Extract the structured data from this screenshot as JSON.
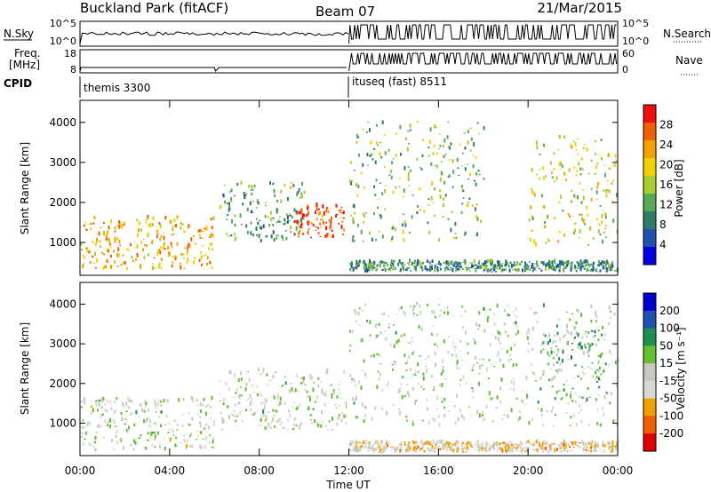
{
  "header": {
    "station": "Buckland Park (fitACF)",
    "beam": "Beam 07",
    "date": "21/Mar/2015"
  },
  "top_panels": {
    "nsky_label": "N.Sky",
    "nsky_ticks": [
      "10^5",
      "10^0"
    ],
    "nsearch_label": "N.Search",
    "nsearch_ticks": [
      "10^5",
      "10^0"
    ],
    "freq_label_1": "Freq.",
    "freq_label_2": "[MHz]",
    "freq_ticks": [
      "18",
      "8"
    ],
    "nave_label": "Nave",
    "nave_ticks": [
      "60",
      "0"
    ],
    "cpid_label": "CPID",
    "cpid_segments": [
      {
        "name": "themis 3300",
        "start_h": 0,
        "end_h": 12
      },
      {
        "name": "ituseq (fast) 8511",
        "start_h": 12,
        "end_h": 24
      }
    ]
  },
  "colors": {
    "power": [
      "#0000e0",
      "#2050b0",
      "#2e7d6a",
      "#58a858",
      "#a8cc30",
      "#f0d000",
      "#f4a000",
      "#f06000",
      "#f01010"
    ],
    "velocity": [
      "#e00000",
      "#f06000",
      "#f0a000",
      "#d8d8d0",
      "#c8c8c0",
      "#60c030",
      "#209050",
      "#2050b0",
      "#0000d0"
    ]
  },
  "chart_data": [
    {
      "type": "heatmap",
      "ylabel": "Slant Range [km]",
      "colorbar_label": "Power [dB]",
      "colorbar_ticks": [
        "28",
        "24",
        "20",
        "16",
        "12",
        "8",
        "4"
      ],
      "colorbar_range": [
        0,
        32
      ],
      "y_ticks": [
        "4000",
        "3000",
        "2000",
        "1000"
      ],
      "ylim": [
        180,
        4550
      ],
      "xlim": [
        0,
        24
      ],
      "regions": [
        {
          "t0": 0,
          "t1": 6,
          "r0": 300,
          "r1": 1600,
          "value": 22
        },
        {
          "t0": 6.2,
          "t1": 10,
          "r0": 1000,
          "r1": 2500,
          "value": 12
        },
        {
          "t0": 9.5,
          "t1": 11.8,
          "r0": 1100,
          "r1": 1900,
          "value": 28
        },
        {
          "t0": 12,
          "t1": 24,
          "r0": 250,
          "r1": 500,
          "value": 10
        },
        {
          "t0": 12,
          "t1": 18,
          "r0": 1000,
          "r1": 4000,
          "value": 14
        },
        {
          "t0": 20,
          "t1": 24,
          "r0": 900,
          "r1": 3600,
          "value": 18
        }
      ]
    },
    {
      "type": "heatmap",
      "ylabel": "Slant Range [km]",
      "colorbar_label": "Velocity [m s⁻¹]",
      "colorbar_ticks": [
        "200",
        "100",
        "50",
        "15",
        "-15",
        "-50",
        "-100",
        "-200"
      ],
      "colorbar_range": [
        -250,
        250
      ],
      "y_ticks": [
        "4000",
        "3000",
        "2000",
        "1000"
      ],
      "ylim": [
        180,
        4550
      ],
      "xlim": [
        0,
        24
      ],
      "xlabel": "Time UT",
      "x_ticks": [
        "00:00",
        "04:00",
        "08:00",
        "12:00",
        "16:00",
        "20:00",
        "00:00"
      ],
      "regions": [
        {
          "t0": 0,
          "t1": 6,
          "r0": 300,
          "r1": 1600,
          "value": 0
        },
        {
          "t0": 6.2,
          "t1": 12,
          "r0": 800,
          "r1": 2300,
          "value": 0
        },
        {
          "t0": 12,
          "t1": 24,
          "r0": 250,
          "r1": 500,
          "value": -60
        },
        {
          "t0": 12,
          "t1": 24,
          "r0": 900,
          "r1": 4000,
          "value": 5
        },
        {
          "t0": 20.5,
          "t1": 23.5,
          "r0": 1500,
          "r1": 3500,
          "value": 60
        }
      ]
    }
  ]
}
